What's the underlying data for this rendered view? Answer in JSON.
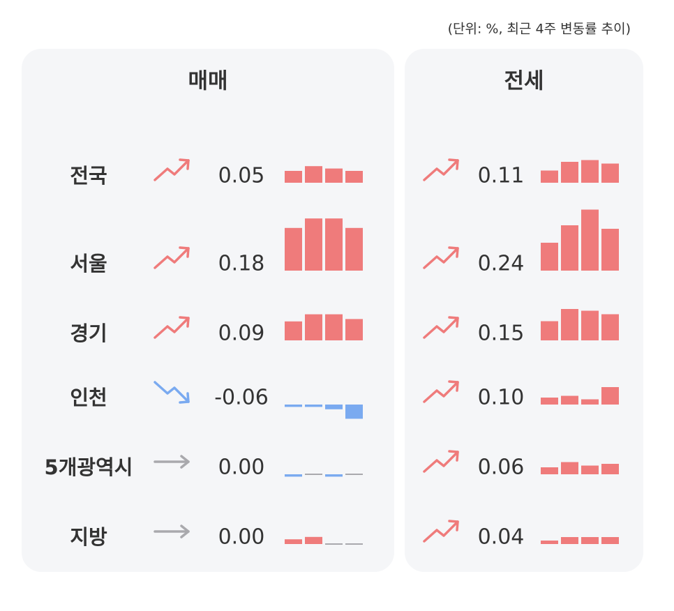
{
  "note": "(단위: %, 최근 4주 변동률 추이)",
  "colors": {
    "up": "#ef7b7b",
    "down": "#7aaaf0",
    "flat": "#a9a9ad"
  },
  "panels": [
    {
      "title": "매매",
      "rows": [
        {
          "region": "전국",
          "value": 0.05,
          "value_label": "0.05",
          "trend": [
            0.05,
            0.07,
            0.06,
            0.05
          ]
        },
        {
          "region": "서울",
          "value": 0.18,
          "value_label": "0.18",
          "trend": [
            0.18,
            0.22,
            0.22,
            0.18
          ]
        },
        {
          "region": "경기",
          "value": 0.09,
          "value_label": "0.09",
          "trend": [
            0.08,
            0.11,
            0.11,
            0.09
          ]
        },
        {
          "region": "인천",
          "value": -0.06,
          "value_label": "-0.06",
          "trend": [
            -0.01,
            -0.01,
            -0.02,
            -0.06
          ]
        },
        {
          "region": "5개광역시",
          "value": 0,
          "value_label": "0.00",
          "trend": [
            -0.01,
            0,
            -0.01,
            0
          ]
        },
        {
          "region": "지방",
          "value": 0,
          "value_label": "0.00",
          "trend": [
            0.02,
            0.03,
            0,
            0
          ]
        }
      ]
    },
    {
      "title": "전세",
      "rows": [
        {
          "value": 0.11,
          "value_label": "0.11",
          "trend": [
            0.07,
            0.12,
            0.13,
            0.11
          ]
        },
        {
          "value": 0.24,
          "value_label": "0.24",
          "trend": [
            0.16,
            0.26,
            0.35,
            0.24
          ]
        },
        {
          "value": 0.15,
          "value_label": "0.15",
          "trend": [
            0.11,
            0.18,
            0.17,
            0.15
          ]
        },
        {
          "value": 0.1,
          "value_label": "0.10",
          "trend": [
            0.04,
            0.05,
            0.03,
            0.1
          ]
        },
        {
          "value": 0.06,
          "value_label": "0.06",
          "trend": [
            0.04,
            0.07,
            0.05,
            0.06
          ]
        },
        {
          "value": 0.04,
          "value_label": "0.04",
          "trend": [
            0.02,
            0.04,
            0.04,
            0.04
          ]
        }
      ]
    }
  ]
}
